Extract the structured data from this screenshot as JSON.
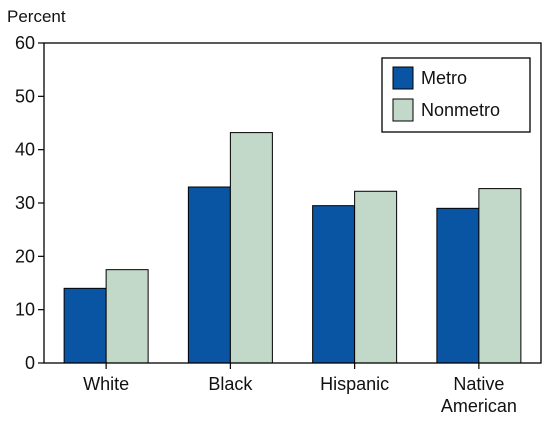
{
  "chart_data": {
    "type": "bar",
    "ylabel": "Percent",
    "ylim": [
      0,
      60
    ],
    "yticks": [
      0,
      10,
      20,
      30,
      40,
      50,
      60
    ],
    "grid": false,
    "legend": "top-right",
    "categories": [
      [
        "White"
      ],
      [
        "Black"
      ],
      [
        "Hispanic"
      ],
      [
        "Native",
        "American"
      ]
    ],
    "series": [
      {
        "name": "Metro",
        "color": "#0a55a3",
        "values": [
          14,
          33,
          29.5,
          29
        ]
      },
      {
        "name": "Nonmetro",
        "color": "#c2d8c9",
        "values": [
          17.5,
          43.2,
          32.2,
          32.7
        ]
      }
    ]
  }
}
